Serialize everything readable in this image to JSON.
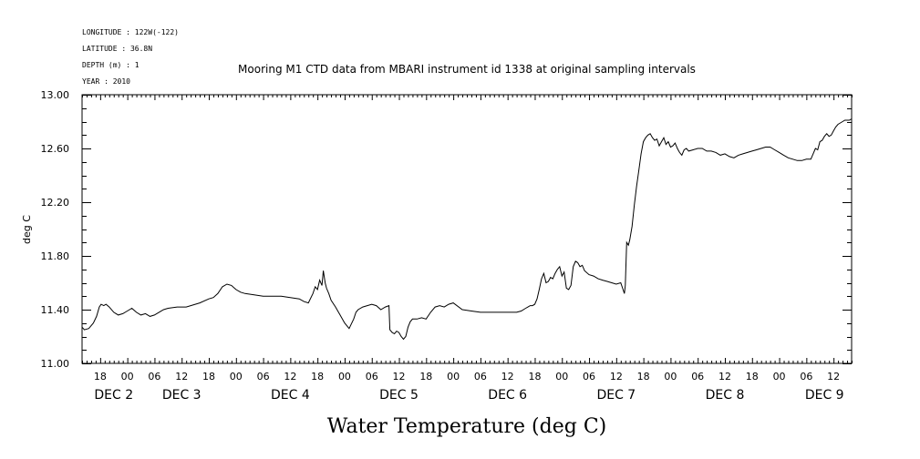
{
  "header": {
    "longitude": "LONGITUDE : 122W(-122)",
    "latitude": "LATITUDE : 36.8N",
    "depth": "DEPTH (m) : 1",
    "year": "YEAR : 2010"
  },
  "chart_data": {
    "type": "line",
    "title": "Mooring M1 CTD data from MBARI instrument id 1338 at original sampling intervals",
    "xlabel": "Water Temperature (deg C)",
    "ylabel": "deg C",
    "ylim": [
      11.0,
      13.0
    ],
    "yticks": [
      "11.00",
      "11.40",
      "11.80",
      "12.20",
      "12.60",
      "13.00"
    ],
    "ytick_values": [
      11.0,
      11.4,
      11.8,
      12.2,
      12.6,
      13.0
    ],
    "xlim_hours": [
      14,
      184
    ],
    "hour_ticks": [
      {
        "h": 18,
        "label": "18"
      },
      {
        "h": 24,
        "label": "00"
      },
      {
        "h": 30,
        "label": "06"
      },
      {
        "h": 36,
        "label": "12"
      },
      {
        "h": 42,
        "label": "18"
      },
      {
        "h": 48,
        "label": "00"
      },
      {
        "h": 54,
        "label": "06"
      },
      {
        "h": 60,
        "label": "12"
      },
      {
        "h": 66,
        "label": "18"
      },
      {
        "h": 72,
        "label": "00"
      },
      {
        "h": 78,
        "label": "06"
      },
      {
        "h": 84,
        "label": "12"
      },
      {
        "h": 90,
        "label": "18"
      },
      {
        "h": 96,
        "label": "00"
      },
      {
        "h": 102,
        "label": "06"
      },
      {
        "h": 108,
        "label": "12"
      },
      {
        "h": 114,
        "label": "18"
      },
      {
        "h": 120,
        "label": "00"
      },
      {
        "h": 126,
        "label": "06"
      },
      {
        "h": 132,
        "label": "12"
      },
      {
        "h": 138,
        "label": "18"
      },
      {
        "h": 144,
        "label": "00"
      },
      {
        "h": 150,
        "label": "06"
      },
      {
        "h": 156,
        "label": "12"
      },
      {
        "h": 162,
        "label": "18"
      },
      {
        "h": 168,
        "label": "00"
      },
      {
        "h": 174,
        "label": "06"
      },
      {
        "h": 180,
        "label": "12"
      }
    ],
    "date_labels": [
      {
        "h": 21,
        "label": "DEC  2"
      },
      {
        "h": 36,
        "label": "DEC  3"
      },
      {
        "h": 60,
        "label": "DEC  4"
      },
      {
        "h": 84,
        "label": "DEC  5"
      },
      {
        "h": 108,
        "label": "DEC  6"
      },
      {
        "h": 132,
        "label": "DEC  7"
      },
      {
        "h": 156,
        "label": "DEC  8"
      },
      {
        "h": 178,
        "label": "DEC  9"
      }
    ],
    "series": [
      {
        "x": [
          14.0,
          14.5,
          15.5,
          16.0,
          16.5,
          17.2,
          17.8,
          18.2,
          18.8,
          19.3,
          20.0,
          21.0,
          22.0,
          23.0,
          24.0,
          25.0,
          26.0,
          27.0,
          28.0,
          29.0,
          30.0,
          31.0,
          32.0,
          33.0,
          35.0,
          37.0,
          38.0,
          40.0,
          42.0,
          43.0,
          44.0,
          45.0,
          46.0,
          47.0,
          48.0,
          49.0,
          50.0,
          52.0,
          54.0,
          56.0,
          58.0,
          60.0,
          62.0,
          63.0,
          64.0,
          65.0,
          65.5,
          66.0,
          66.5,
          67.0,
          67.3,
          67.7,
          68.0,
          68.5,
          69.0,
          70.0,
          71.0,
          72.0,
          73.0,
          74.0,
          74.5,
          75.0,
          76.0,
          77.0,
          78.0,
          79.0,
          80.0,
          81.0,
          81.8,
          82.0,
          82.5,
          83.0,
          83.5,
          84.0,
          84.5,
          85.0,
          85.5,
          86.0,
          86.5,
          87.0,
          88.0,
          89.0,
          90.0,
          91.0,
          92.0,
          93.0,
          94.0,
          95.0,
          96.0,
          98.0,
          100.0,
          102.0,
          104.0,
          106.0,
          108.0,
          110.0,
          111.0,
          112.0,
          112.5,
          113.0,
          113.5,
          114.0,
          114.5,
          115.0,
          115.5,
          116.0,
          116.5,
          117.0,
          117.5,
          118.0,
          118.5,
          119.0,
          119.5,
          120.0,
          120.5,
          121.0,
          121.5,
          122.0,
          122.5,
          123.0,
          123.5,
          124.0,
          124.5,
          125.0,
          126.0,
          127.0,
          128.0,
          129.0,
          130.0,
          131.0,
          132.0,
          133.0,
          133.5,
          133.8,
          134.0,
          134.3,
          134.7,
          135.0,
          135.5,
          136.0,
          136.5,
          137.0,
          137.5,
          138.0,
          138.5,
          139.0,
          139.5,
          140.0,
          140.5,
          141.0,
          141.5,
          142.0,
          142.5,
          143.0,
          143.5,
          144.0,
          144.5,
          145.0,
          145.5,
          146.0,
          146.5,
          147.0,
          147.5,
          148.0,
          149.0,
          150.0,
          151.0,
          152.0,
          153.0,
          154.0,
          155.0,
          156.0,
          157.0,
          158.0,
          159.0,
          160.0,
          161.0,
          162.0,
          163.0,
          164.0,
          165.0,
          166.0,
          167.0,
          168.0,
          169.0,
          170.0,
          171.0,
          172.0,
          173.0,
          174.0,
          175.0,
          175.5,
          176.0,
          176.5,
          177.0,
          177.5,
          178.0,
          178.5,
          179.0,
          179.5,
          180.0,
          180.5,
          181.0,
          181.5,
          182.0,
          182.5,
          183.0,
          183.5,
          184.0
        ],
        "y": [
          11.27,
          11.25,
          11.26,
          11.28,
          11.3,
          11.35,
          11.42,
          11.44,
          11.43,
          11.44,
          11.42,
          11.38,
          11.36,
          11.37,
          11.39,
          11.41,
          11.38,
          11.36,
          11.37,
          11.35,
          11.36,
          11.38,
          11.4,
          11.41,
          11.42,
          11.42,
          11.43,
          11.45,
          11.48,
          11.49,
          11.52,
          11.57,
          11.59,
          11.58,
          11.55,
          11.53,
          11.52,
          11.51,
          11.5,
          11.5,
          11.5,
          11.49,
          11.48,
          11.46,
          11.45,
          11.52,
          11.57,
          11.55,
          11.62,
          11.58,
          11.69,
          11.6,
          11.56,
          11.52,
          11.47,
          11.42,
          11.36,
          11.3,
          11.26,
          11.33,
          11.38,
          11.4,
          11.42,
          11.43,
          11.44,
          11.43,
          11.4,
          11.42,
          11.43,
          11.25,
          11.23,
          11.22,
          11.24,
          11.23,
          11.2,
          11.18,
          11.2,
          11.27,
          11.31,
          11.33,
          11.33,
          11.34,
          11.33,
          11.38,
          11.42,
          11.43,
          11.42,
          11.44,
          11.45,
          11.4,
          11.39,
          11.38,
          11.38,
          11.38,
          11.38,
          11.38,
          11.39,
          11.41,
          11.42,
          11.43,
          11.43,
          11.44,
          11.48,
          11.55,
          11.63,
          11.67,
          11.6,
          11.61,
          11.64,
          11.63,
          11.67,
          11.7,
          11.72,
          11.65,
          11.68,
          11.56,
          11.55,
          11.58,
          11.72,
          11.76,
          11.75,
          11.72,
          11.73,
          11.69,
          11.66,
          11.65,
          11.63,
          11.62,
          11.61,
          11.6,
          11.59,
          11.6,
          11.55,
          11.52,
          11.58,
          11.9,
          11.88,
          11.92,
          12.02,
          12.18,
          12.32,
          12.44,
          12.56,
          12.65,
          12.68,
          12.7,
          12.71,
          12.68,
          12.66,
          12.67,
          12.62,
          12.65,
          12.68,
          12.63,
          12.65,
          12.61,
          12.62,
          12.64,
          12.6,
          12.57,
          12.55,
          12.59,
          12.6,
          12.58,
          12.59,
          12.6,
          12.6,
          12.58,
          12.58,
          12.57,
          12.55,
          12.56,
          12.54,
          12.53,
          12.55,
          12.56,
          12.57,
          12.58,
          12.59,
          12.6,
          12.61,
          12.61,
          12.59,
          12.57,
          12.55,
          12.53,
          12.52,
          12.51,
          12.51,
          12.52,
          12.52,
          12.56,
          12.6,
          12.59,
          12.65,
          12.66,
          12.69,
          12.71,
          12.69,
          12.7,
          12.73,
          12.76,
          12.78,
          12.79,
          12.8,
          12.81,
          12.81,
          12.81,
          12.82
        ]
      }
    ]
  }
}
